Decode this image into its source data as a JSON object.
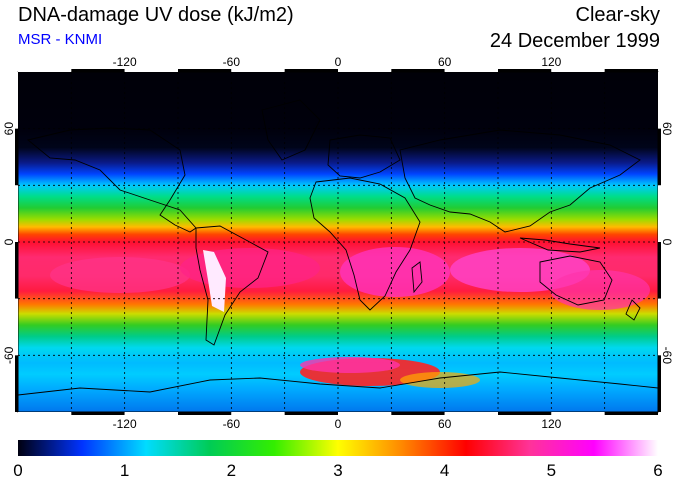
{
  "header": {
    "title": "DNA-damage UV dose (kJ/m2)",
    "subtitle": "MSR - KNMI",
    "subtitle_color": "#0000ff",
    "sky_condition": "Clear-sky",
    "date": "24 December 1999"
  },
  "map": {
    "projection": "equirectangular",
    "lon_range": [
      -180,
      180
    ],
    "lat_range": [
      -90,
      90
    ],
    "grid_spacing_deg": 30,
    "longitude_ticks": [
      "-120",
      "-60",
      "0",
      "60",
      "120"
    ],
    "longitude_tick_values": [
      -120,
      -60,
      0,
      60,
      120
    ],
    "latitude_ticks": [
      "60",
      "0",
      "-60"
    ],
    "latitude_tick_values": [
      60,
      0,
      -60
    ],
    "color_scale_gradient": [
      "#000010",
      "#0033ff",
      "#00dcff",
      "#00cc55",
      "#33ee00",
      "#ffff00",
      "#ff8800",
      "#ff0000",
      "#ff3399",
      "#ff00ff",
      "#ffffff"
    ]
  },
  "colorbar": {
    "min": 0,
    "max": 6,
    "labels": [
      "0",
      "1",
      "2",
      "3",
      "4",
      "5",
      "6"
    ],
    "label_values": [
      0,
      1,
      2,
      3,
      4,
      5,
      6
    ]
  }
}
